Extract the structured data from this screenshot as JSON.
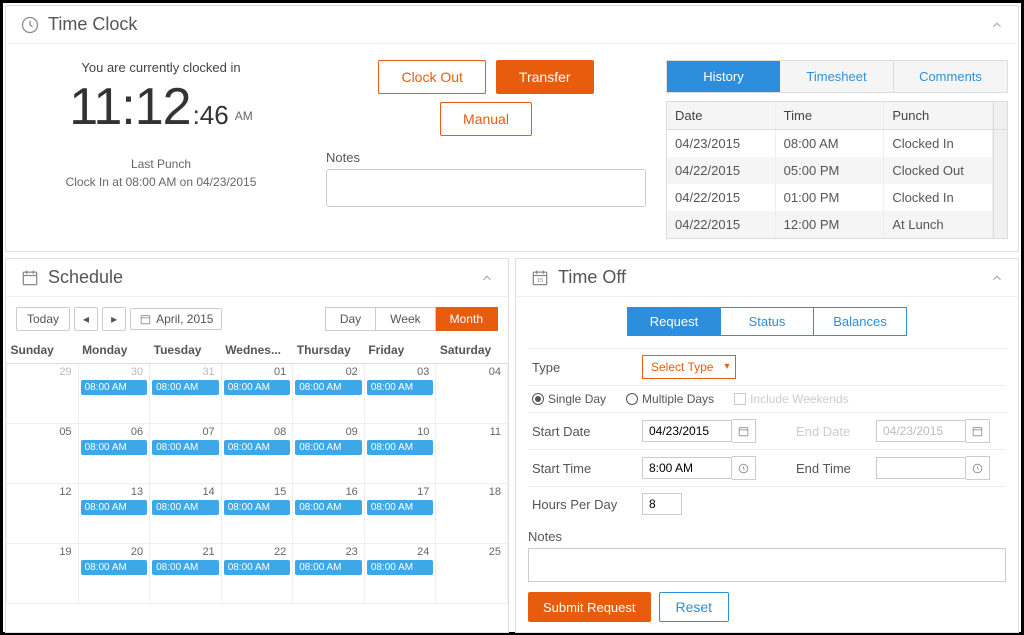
{
  "colors": {
    "accent_orange": "#e85c0d",
    "accent_blue": "#2e8ede",
    "event_blue": "#3ca8e8"
  },
  "timeClock": {
    "title": "Time Clock",
    "status": "You are currently clocked in",
    "hours": "11",
    "minutes": "12",
    "seconds": "46",
    "ampm": "AM",
    "lastPunchLabel": "Last Punch",
    "lastPunchDetail": "Clock In at 08:00 AM on 04/23/2015",
    "buttons": {
      "clockOut": "Clock Out",
      "transfer": "Transfer",
      "manual": "Manual"
    },
    "notesLabel": "Notes",
    "tabs": {
      "history": "History",
      "timesheet": "Timesheet",
      "comments": "Comments"
    },
    "historyHeaders": {
      "date": "Date",
      "time": "Time",
      "punch": "Punch"
    },
    "history": [
      {
        "date": "04/23/2015",
        "time": "08:00 AM",
        "punch": "Clocked In"
      },
      {
        "date": "04/22/2015",
        "time": "05:00 PM",
        "punch": "Clocked Out"
      },
      {
        "date": "04/22/2015",
        "time": "01:00 PM",
        "punch": "Clocked In"
      },
      {
        "date": "04/22/2015",
        "time": "12:00 PM",
        "punch": "At Lunch"
      }
    ]
  },
  "schedule": {
    "title": "Schedule",
    "todayBtn": "Today",
    "monthLabel": "April, 2015",
    "views": {
      "day": "Day",
      "week": "Week",
      "month": "Month"
    },
    "dayHeaders": [
      "Sunday",
      "Monday",
      "Tuesday",
      "Wednes...",
      "Thursday",
      "Friday",
      "Saturday"
    ],
    "eventLabel": "08:00 AM",
    "weeks": [
      [
        {
          "n": "29",
          "m": true,
          "e": false
        },
        {
          "n": "30",
          "m": true,
          "e": true
        },
        {
          "n": "31",
          "m": true,
          "e": true
        },
        {
          "n": "01",
          "e": true
        },
        {
          "n": "02",
          "e": true
        },
        {
          "n": "03",
          "e": true
        },
        {
          "n": "04",
          "e": false
        }
      ],
      [
        {
          "n": "05",
          "e": false
        },
        {
          "n": "06",
          "e": true
        },
        {
          "n": "07",
          "e": true
        },
        {
          "n": "08",
          "e": true
        },
        {
          "n": "09",
          "e": true
        },
        {
          "n": "10",
          "e": true
        },
        {
          "n": "11",
          "e": false
        }
      ],
      [
        {
          "n": "12",
          "e": false
        },
        {
          "n": "13",
          "e": true
        },
        {
          "n": "14",
          "e": true
        },
        {
          "n": "15",
          "e": true
        },
        {
          "n": "16",
          "e": true
        },
        {
          "n": "17",
          "e": true
        },
        {
          "n": "18",
          "e": false
        }
      ],
      [
        {
          "n": "19",
          "e": false
        },
        {
          "n": "20",
          "e": true
        },
        {
          "n": "21",
          "e": true
        },
        {
          "n": "22",
          "e": true
        },
        {
          "n": "23",
          "e": true
        },
        {
          "n": "24",
          "e": true
        },
        {
          "n": "25",
          "e": false
        }
      ]
    ]
  },
  "timeOff": {
    "title": "Time Off",
    "tabs": {
      "request": "Request",
      "status": "Status",
      "balances": "Balances"
    },
    "labels": {
      "type": "Type",
      "selectType": "Select Type",
      "singleDay": "Single Day",
      "multipleDays": "Multiple Days",
      "includeWeekends": "Include Weekends",
      "startDate": "Start Date",
      "endDate": "End Date",
      "startTime": "Start Time",
      "endTime": "End Time",
      "hoursPerDay": "Hours Per Day",
      "notes": "Notes",
      "submit": "Submit Request",
      "reset": "Reset"
    },
    "values": {
      "startDate": "04/23/2015",
      "endDate": "04/23/2015",
      "startTime": "8:00 AM",
      "endTime": "",
      "hoursPerDay": "8"
    }
  }
}
